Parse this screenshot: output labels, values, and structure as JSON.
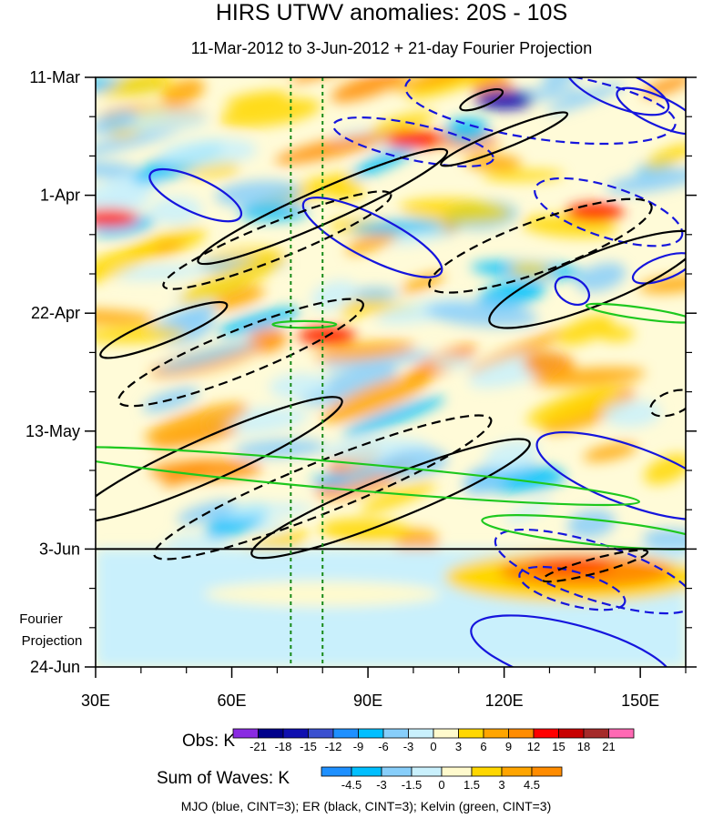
{
  "title": "HIRS UTWV anomalies: 20S - 10S",
  "subtitle": "11-Mar-2012 to 3-Jun-2012 + 21-day Fourier Projection",
  "fourier_label": [
    "Fourier",
    "Projection"
  ],
  "caption": "MJO (blue, CINT=3); ER (black, CINT=3); Kelvin (green, CINT=3)",
  "obs_label": "Obs: K",
  "waves_label": "Sum of Waves: K",
  "chart_data": {
    "type": "heatmap",
    "x_axis": {
      "label": "",
      "range": [
        30,
        160
      ],
      "ticks": [
        {
          "value": 30,
          "label": "30E"
        },
        {
          "value": 60,
          "label": "60E"
        },
        {
          "value": 90,
          "label": "90E"
        },
        {
          "value": 120,
          "label": "120E"
        },
        {
          "value": 150,
          "label": "150E"
        }
      ]
    },
    "y_axis": {
      "label": "",
      "reversed": true,
      "range_days": [
        0,
        105
      ],
      "ticks": [
        {
          "day": 0,
          "label": "11-Mar"
        },
        {
          "day": 21,
          "label": "1-Apr"
        },
        {
          "day": 42,
          "label": "22-Apr"
        },
        {
          "day": 63,
          "label": "13-May"
        },
        {
          "day": 84,
          "label": "3-Jun"
        },
        {
          "day": 105,
          "label": "24-Jun"
        }
      ]
    },
    "reference_lines": {
      "forecast_start": "3-Jun",
      "dotted_longitudes": [
        73,
        80
      ]
    },
    "obs_colorbar": {
      "unit": "K",
      "levels": [
        "-21",
        "-18",
        "-15",
        "-12",
        "-9",
        "-6",
        "-3",
        "0",
        "3",
        "6",
        "9",
        "12",
        "15",
        "18",
        "21"
      ],
      "colors": [
        "#8a2be2",
        "#00008b",
        "#1010b0",
        "#3a50d0",
        "#1e90ff",
        "#00bfff",
        "#87cefa",
        "#c9f0fc",
        "#fffacd",
        "#ffd700",
        "#ffa500",
        "#ff8c00",
        "#ff0000",
        "#c80000",
        "#a52a2a",
        "#ff69b4"
      ]
    },
    "waves_colorbar": {
      "unit": "K",
      "levels": [
        "-4.5",
        "-3",
        "-1.5",
        "0",
        "1.5",
        "3",
        "4.5"
      ],
      "colors": [
        "#1e90ff",
        "#00bfff",
        "#87cefa",
        "#c9f0fc",
        "#fffacd",
        "#ffd700",
        "#ffa500",
        "#ff8c00"
      ]
    },
    "contours": [
      {
        "wave": "MJO",
        "color": "#1515dd",
        "cx": 145,
        "cy": 2,
        "rx": 12,
        "ry": 3.2,
        "rot": 22,
        "dash": false
      },
      {
        "wave": "MJO",
        "color": "#1515dd",
        "cx": 154,
        "cy": 6,
        "rx": 10,
        "ry": 2.5,
        "rot": 25,
        "dash": false
      },
      {
        "wave": "MJO",
        "color": "#1515dd",
        "cx": 52,
        "cy": 21,
        "rx": 11,
        "ry": 3.0,
        "rot": 25,
        "dash": false
      },
      {
        "wave": "MJO",
        "color": "#1515dd",
        "cx": 91,
        "cy": 28.5,
        "rx": 17,
        "ry": 3.8,
        "rot": 27,
        "dash": false
      },
      {
        "wave": "MJO",
        "color": "#1515dd",
        "cx": 128,
        "cy": 5,
        "rx": 30,
        "ry": 6,
        "rot": 8,
        "dash": true
      },
      {
        "wave": "MJO",
        "color": "#1515dd",
        "cx": 100,
        "cy": 11.5,
        "rx": 18,
        "ry": 3.2,
        "rot": 12,
        "dash": true
      },
      {
        "wave": "MJO",
        "color": "#1515dd",
        "cx": 143,
        "cy": 24,
        "rx": 17,
        "ry": 4.5,
        "rot": 18,
        "dash": true
      },
      {
        "wave": "MJO",
        "color": "#1515dd",
        "cx": 135,
        "cy": 38,
        "rx": 4,
        "ry": 2.2,
        "rot": 30,
        "dash": false
      },
      {
        "wave": "MJO",
        "color": "#1515dd",
        "cx": 155,
        "cy": 34,
        "rx": 7,
        "ry": 2.0,
        "rot": -20,
        "dash": false
      },
      {
        "wave": "MJO",
        "color": "#1515dd",
        "cx": 148,
        "cy": 71,
        "rx": 22,
        "ry": 5.2,
        "rot": 20,
        "dash": false
      },
      {
        "wave": "MJO",
        "color": "#1515dd",
        "cx": 140,
        "cy": 88,
        "rx": 23,
        "ry": 5.0,
        "rot": 18,
        "dash": true
      },
      {
        "wave": "MJO",
        "color": "#1515dd",
        "cx": 135,
        "cy": 91,
        "rx": 12,
        "ry": 3.0,
        "rot": 15,
        "dash": true
      },
      {
        "wave": "MJO",
        "color": "#1515dd",
        "cx": 135,
        "cy": 103,
        "rx": 23,
        "ry": 5.5,
        "rot": 15,
        "dash": false
      },
      {
        "wave": "ER",
        "color": "#000000",
        "cx": 80,
        "cy": 23,
        "rx": 30,
        "ry": 3.0,
        "rot": -24,
        "dash": false
      },
      {
        "wave": "ER",
        "color": "#000000",
        "cx": 120,
        "cy": 11,
        "rx": 15,
        "ry": 1.6,
        "rot": -22,
        "dash": false
      },
      {
        "wave": "ER",
        "color": "#000000",
        "cx": 115,
        "cy": 4,
        "rx": 5,
        "ry": 1.2,
        "rot": -22,
        "dash": false
      },
      {
        "wave": "ER",
        "color": "#000000",
        "cx": 70,
        "cy": 29,
        "rx": 27,
        "ry": 3.2,
        "rot": -22,
        "dash": true
      },
      {
        "wave": "ER",
        "color": "#000000",
        "cx": 128,
        "cy": 30,
        "rx": 26,
        "ry": 4.5,
        "rot": -20,
        "dash": true
      },
      {
        "wave": "ER",
        "color": "#000000",
        "cx": 140,
        "cy": 36,
        "rx": 25,
        "ry": 4.5,
        "rot": -22,
        "dash": false
      },
      {
        "wave": "ER",
        "color": "#000000",
        "cx": 45,
        "cy": 45,
        "rx": 15,
        "ry": 2.2,
        "rot": -22,
        "dash": false
      },
      {
        "wave": "ER",
        "color": "#000000",
        "cx": 62,
        "cy": 49,
        "rx": 29,
        "ry": 4.0,
        "rot": -22,
        "dash": true
      },
      {
        "wave": "ER",
        "color": "#000000",
        "cx": 55,
        "cy": 68,
        "rx": 32,
        "ry": 3.8,
        "rot": -24,
        "dash": false
      },
      {
        "wave": "ER",
        "color": "#000000",
        "cx": 80,
        "cy": 73,
        "rx": 40,
        "ry": 4.5,
        "rot": -22,
        "dash": true
      },
      {
        "wave": "ER",
        "color": "#000000",
        "cx": 95,
        "cy": 75,
        "rx": 33,
        "ry": 3.8,
        "rot": -22,
        "dash": false
      },
      {
        "wave": "ER",
        "color": "#000000",
        "cx": 157,
        "cy": 58,
        "rx": 5,
        "ry": 2,
        "rot": -20,
        "dash": true
      },
      {
        "wave": "ER",
        "color": "#000000",
        "cx": 140,
        "cy": 87,
        "rx": 12,
        "ry": 1.3,
        "rot": -15,
        "dash": true
      },
      {
        "wave": "Kelvin",
        "color": "#1ec81e",
        "cx": 85,
        "cy": 71,
        "rx": 65,
        "ry": 2.4,
        "rot": 5,
        "dash": false
      },
      {
        "wave": "Kelvin",
        "color": "#1ec81e",
        "cx": 140,
        "cy": 81,
        "rx": 25,
        "ry": 2.2,
        "rot": 6,
        "dash": false
      },
      {
        "wave": "Kelvin",
        "color": "#1ec81e",
        "cx": 150,
        "cy": 42,
        "rx": 12,
        "ry": 1.0,
        "rot": 8,
        "dash": false
      },
      {
        "wave": "Kelvin",
        "color": "#1ec81e",
        "cx": 76,
        "cy": 44,
        "rx": 7,
        "ry": 0.6,
        "rot": 0,
        "dash": false
      }
    ]
  }
}
